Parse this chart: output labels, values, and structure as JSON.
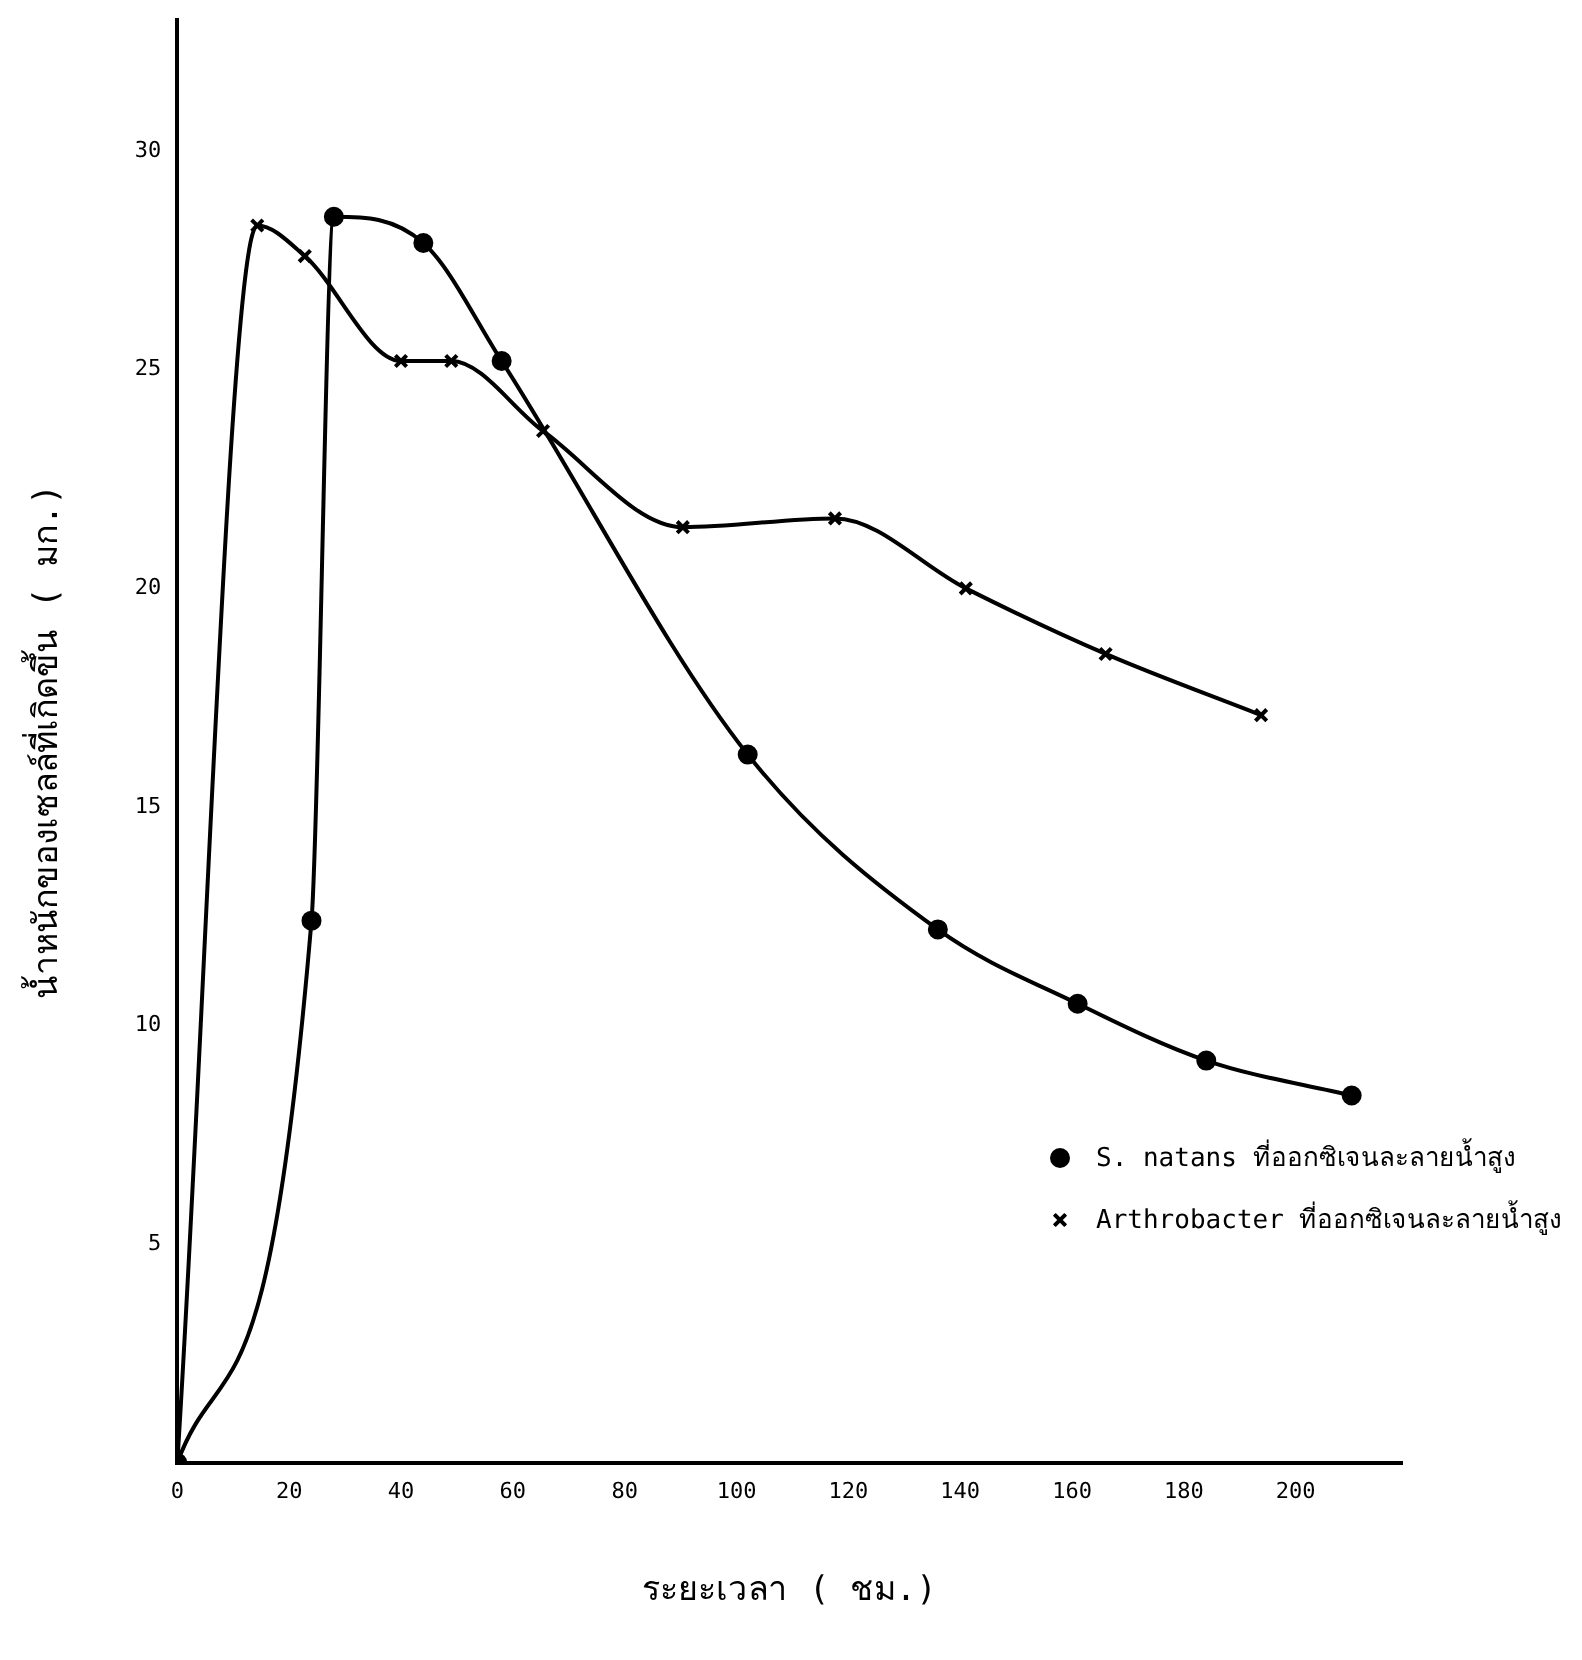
{
  "chart_data": {
    "type": "line",
    "xlabel": "ระยะเวลา ( ชม.)",
    "ylabel": "น้ำหนักของเซลล์ที่เกิดขึ้น ( มก.)",
    "xlim": [
      0,
      219
    ],
    "xticks": [
      0,
      20,
      40,
      60,
      80,
      100,
      120,
      140,
      160,
      180,
      200
    ],
    "ylim": [
      0,
      33
    ],
    "yticks": [
      5,
      10,
      15,
      20,
      25,
      30
    ],
    "grid": false,
    "legend": "bottom right",
    "line_style": "solid",
    "series": [
      {
        "name": "S. natans ที่ออกซิเจนละลายน้ำสูง",
        "color": "#000000",
        "marker": "circle",
        "x": [
          0,
          24,
          28,
          44,
          58,
          102,
          136,
          161,
          184,
          210
        ],
        "values": [
          0,
          12.4,
          28.5,
          27.9,
          25.2,
          16.2,
          12.2,
          10.5,
          9.2,
          8.4
        ]
      },
      {
        "name": "Arthrobacter ที่ออกซิเจนละลายน้ำสูง",
        "color": "#000000",
        "marker": "cross",
        "x": [
          0,
          14.3,
          22.8,
          40,
          49,
          65.4,
          90.4,
          117.6,
          141,
          166,
          193.8
        ],
        "values": [
          0,
          28.3,
          27.6,
          25.2,
          25.2,
          23.6,
          21.4,
          21.6,
          20,
          18.5,
          17.1
        ]
      }
    ]
  }
}
